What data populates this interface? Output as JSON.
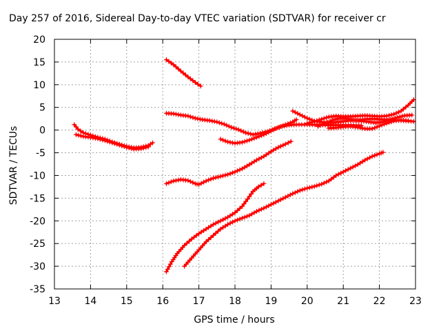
{
  "chart_data": {
    "type": "scatter",
    "title": "Day 257 of 2016, Sidereal Day-to-day VTEC variation (SDTVAR) for receiver cr",
    "xlabel": "GPS time / hours",
    "ylabel": "SDTVAR / TECUs",
    "xlim": [
      13,
      23
    ],
    "ylim": [
      -35,
      20
    ],
    "xticks": [
      13,
      14,
      15,
      16,
      17,
      18,
      19,
      20,
      21,
      22,
      23
    ],
    "yticks": [
      -35,
      -30,
      -25,
      -20,
      -15,
      -10,
      -5,
      0,
      5,
      10,
      15,
      20
    ],
    "grid": true,
    "marker": "plus",
    "color": "#ff0000",
    "series": [
      {
        "points": [
          [
            13.55,
            1.2
          ],
          [
            13.65,
            0.2
          ],
          [
            13.8,
            -0.6
          ],
          [
            14.0,
            -1.1
          ],
          [
            14.2,
            -1.6
          ],
          [
            14.4,
            -2.0
          ],
          [
            14.6,
            -2.6
          ],
          [
            14.8,
            -3.1
          ],
          [
            15.0,
            -3.6
          ],
          [
            15.2,
            -3.9
          ],
          [
            15.4,
            -3.8
          ],
          [
            15.6,
            -3.4
          ],
          [
            15.72,
            -2.8
          ]
        ]
      },
      {
        "points": [
          [
            13.6,
            -1.0
          ],
          [
            13.8,
            -1.4
          ],
          [
            14.0,
            -1.6
          ],
          [
            14.2,
            -1.9
          ],
          [
            14.4,
            -2.3
          ],
          [
            14.6,
            -2.8
          ],
          [
            14.8,
            -3.3
          ],
          [
            15.0,
            -3.8
          ],
          [
            15.2,
            -4.2
          ],
          [
            15.4,
            -4.1
          ],
          [
            15.6,
            -3.7
          ]
        ]
      },
      {
        "points": [
          [
            16.1,
            15.5
          ],
          [
            16.3,
            14.4
          ],
          [
            16.5,
            13.0
          ],
          [
            16.7,
            11.7
          ],
          [
            16.9,
            10.5
          ],
          [
            17.05,
            9.7
          ]
        ]
      },
      {
        "points": [
          [
            16.1,
            3.7
          ],
          [
            16.3,
            3.6
          ],
          [
            16.5,
            3.3
          ],
          [
            16.7,
            3.1
          ],
          [
            16.9,
            2.6
          ],
          [
            17.1,
            2.3
          ],
          [
            17.3,
            2.1
          ],
          [
            17.5,
            1.8
          ],
          [
            17.7,
            1.3
          ],
          [
            17.9,
            0.6
          ],
          [
            18.1,
            0.1
          ],
          [
            18.3,
            -0.6
          ],
          [
            18.5,
            -1.0
          ],
          [
            18.7,
            -0.7
          ],
          [
            18.9,
            -0.3
          ],
          [
            19.1,
            0.3
          ],
          [
            19.3,
            0.8
          ],
          [
            19.5,
            1.1
          ],
          [
            19.7,
            1.2
          ],
          [
            20.0,
            1.2
          ],
          [
            20.5,
            1.1
          ],
          [
            21.0,
            1.1
          ],
          [
            21.5,
            1.0
          ]
        ]
      },
      {
        "points": [
          [
            17.6,
            -2.0
          ],
          [
            17.8,
            -2.6
          ],
          [
            18.0,
            -2.9
          ],
          [
            18.2,
            -2.7
          ],
          [
            18.4,
            -2.2
          ],
          [
            18.6,
            -1.6
          ],
          [
            18.8,
            -1.0
          ],
          [
            19.0,
            -0.2
          ],
          [
            19.2,
            0.6
          ],
          [
            19.4,
            1.2
          ],
          [
            19.6,
            1.8
          ],
          [
            19.7,
            2.3
          ]
        ]
      },
      {
        "points": [
          [
            19.6,
            4.2
          ],
          [
            19.8,
            3.4
          ],
          [
            20.0,
            2.6
          ],
          [
            20.2,
            2.0
          ],
          [
            20.4,
            1.8
          ],
          [
            20.6,
            1.6
          ],
          [
            20.8,
            1.7
          ],
          [
            21.0,
            1.9
          ],
          [
            21.2,
            2.1
          ],
          [
            21.4,
            2.2
          ],
          [
            21.6,
            2.4
          ],
          [
            21.8,
            2.5
          ],
          [
            22.0,
            2.4
          ],
          [
            22.2,
            2.3
          ],
          [
            22.4,
            2.2
          ],
          [
            22.6,
            2.1
          ],
          [
            22.8,
            2.0
          ],
          [
            22.95,
            1.9
          ]
        ]
      },
      {
        "points": [
          [
            20.0,
            1.5
          ],
          [
            20.2,
            1.9
          ],
          [
            20.4,
            2.4
          ],
          [
            20.6,
            2.9
          ],
          [
            20.8,
            3.1
          ],
          [
            21.0,
            3.0
          ],
          [
            21.2,
            3.0
          ],
          [
            21.4,
            3.1
          ],
          [
            21.6,
            3.2
          ],
          [
            21.8,
            3.1
          ],
          [
            22.0,
            3.0
          ],
          [
            22.2,
            3.1
          ],
          [
            22.4,
            3.5
          ],
          [
            22.6,
            4.2
          ],
          [
            22.8,
            5.5
          ],
          [
            22.95,
            6.7
          ]
        ]
      },
      {
        "points": [
          [
            20.3,
            0.8
          ],
          [
            20.5,
            1.5
          ],
          [
            20.7,
            2.2
          ],
          [
            20.9,
            2.6
          ],
          [
            21.1,
            2.5
          ],
          [
            21.3,
            2.2
          ],
          [
            21.5,
            2.0
          ],
          [
            21.7,
            1.8
          ],
          [
            21.9,
            1.6
          ],
          [
            22.1,
            1.8
          ],
          [
            22.3,
            2.3
          ],
          [
            22.5,
            2.8
          ],
          [
            22.7,
            3.2
          ],
          [
            22.9,
            3.3
          ]
        ]
      },
      {
        "points": [
          [
            20.6,
            0.4
          ],
          [
            20.8,
            0.5
          ],
          [
            21.0,
            0.7
          ],
          [
            21.2,
            0.8
          ],
          [
            21.4,
            0.6
          ],
          [
            21.6,
            0.3
          ],
          [
            21.8,
            0.3
          ],
          [
            22.0,
            0.9
          ],
          [
            22.2,
            1.5
          ],
          [
            22.4,
            2.0
          ],
          [
            22.6,
            2.2
          ],
          [
            22.8,
            2.1
          ]
        ]
      },
      {
        "points": [
          [
            16.1,
            -11.8
          ],
          [
            16.3,
            -11.2
          ],
          [
            16.5,
            -10.9
          ],
          [
            16.7,
            -11.1
          ],
          [
            16.9,
            -11.8
          ],
          [
            17.0,
            -12.0
          ],
          [
            17.2,
            -11.2
          ],
          [
            17.4,
            -10.6
          ],
          [
            17.6,
            -10.2
          ],
          [
            17.8,
            -9.8
          ],
          [
            18.0,
            -9.2
          ],
          [
            18.2,
            -8.5
          ],
          [
            18.4,
            -7.6
          ],
          [
            18.6,
            -6.6
          ],
          [
            18.8,
            -5.8
          ],
          [
            19.0,
            -4.7
          ],
          [
            19.2,
            -3.8
          ],
          [
            19.4,
            -3.1
          ],
          [
            19.55,
            -2.5
          ]
        ]
      },
      {
        "points": [
          [
            16.1,
            -31.2
          ],
          [
            16.25,
            -29.0
          ],
          [
            16.4,
            -27.2
          ],
          [
            16.6,
            -25.4
          ],
          [
            16.8,
            -24.0
          ],
          [
            17.0,
            -22.8
          ],
          [
            17.2,
            -21.8
          ],
          [
            17.4,
            -20.8
          ],
          [
            17.6,
            -20.0
          ],
          [
            17.8,
            -19.2
          ],
          [
            18.0,
            -18.2
          ],
          [
            18.2,
            -16.8
          ],
          [
            18.35,
            -15.2
          ],
          [
            18.5,
            -13.5
          ],
          [
            18.65,
            -12.5
          ],
          [
            18.8,
            -11.8
          ]
        ]
      },
      {
        "points": [
          [
            16.6,
            -30.0
          ],
          [
            16.8,
            -28.2
          ],
          [
            17.0,
            -26.4
          ],
          [
            17.2,
            -24.6
          ],
          [
            17.4,
            -23.2
          ],
          [
            17.6,
            -21.8
          ],
          [
            17.8,
            -20.8
          ],
          [
            18.0,
            -20.0
          ],
          [
            18.2,
            -19.4
          ],
          [
            18.4,
            -18.8
          ],
          [
            18.6,
            -17.9
          ],
          [
            18.8,
            -17.2
          ],
          [
            19.0,
            -16.4
          ],
          [
            19.2,
            -15.6
          ],
          [
            19.4,
            -14.8
          ],
          [
            19.6,
            -14.0
          ],
          [
            19.8,
            -13.3
          ],
          [
            20.0,
            -12.8
          ],
          [
            20.2,
            -12.4
          ],
          [
            20.4,
            -11.9
          ],
          [
            20.6,
            -11.2
          ],
          [
            20.8,
            -10.0
          ],
          [
            21.0,
            -9.2
          ],
          [
            21.2,
            -8.4
          ],
          [
            21.4,
            -7.6
          ],
          [
            21.6,
            -6.6
          ],
          [
            21.8,
            -5.8
          ],
          [
            22.0,
            -5.2
          ],
          [
            22.1,
            -4.9
          ]
        ]
      }
    ]
  }
}
